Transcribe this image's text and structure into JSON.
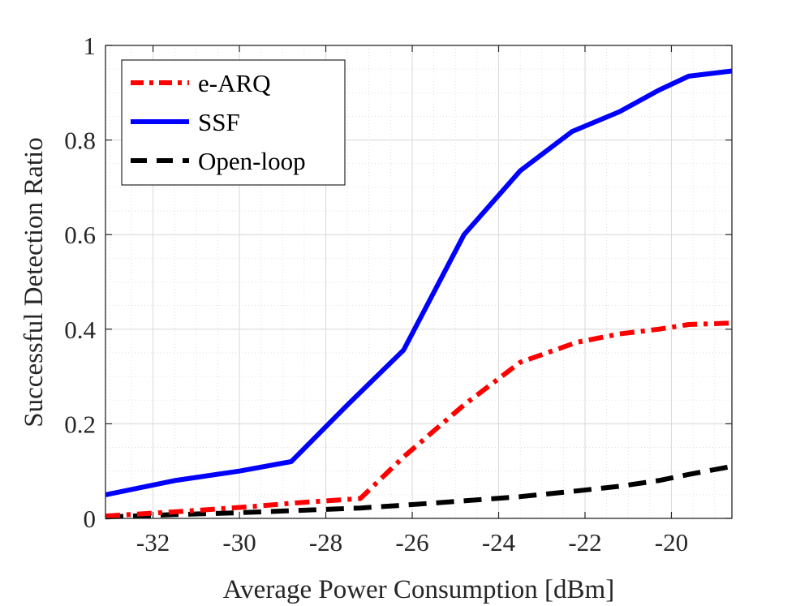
{
  "chart_data": {
    "type": "line",
    "title": "",
    "xlabel": "Average Power Consumption [dBm]",
    "ylabel": "Successful Detection Ratio",
    "xlim": [
      -33.1,
      -18.6
    ],
    "ylim": [
      0,
      1
    ],
    "xticks": [
      -32,
      -30,
      -28,
      -26,
      -24,
      -22,
      -20
    ],
    "yticks": [
      0,
      0.2,
      0.4,
      0.6,
      0.8,
      1
    ],
    "xtick_labels": [
      "-32",
      "-30",
      "-28",
      "-26",
      "-24",
      "-22",
      "-20"
    ],
    "ytick_labels": [
      "0",
      "0.2",
      "0.4",
      "0.6",
      "0.8",
      "1"
    ],
    "minor_grid": true,
    "legend_position": "top-left",
    "series": [
      {
        "name": "e-ARQ",
        "color": "#ff0000",
        "style": "dash-dot",
        "x": [
          -33.1,
          -31.3,
          -29.7,
          -28.8,
          -27.2,
          -26.2,
          -24.8,
          -23.5,
          -22.2,
          -21.2,
          -20.3,
          -19.6,
          -18.6
        ],
        "y": [
          0.005,
          0.015,
          0.025,
          0.032,
          0.042,
          0.13,
          0.24,
          0.33,
          0.372,
          0.39,
          0.4,
          0.41,
          0.413
        ]
      },
      {
        "name": "SSF",
        "color": "#0000ff",
        "style": "solid",
        "x": [
          -33.1,
          -31.5,
          -30.0,
          -28.8,
          -27.5,
          -26.2,
          -24.8,
          -23.5,
          -22.3,
          -21.2,
          -20.3,
          -19.6,
          -18.6
        ],
        "y": [
          0.05,
          0.08,
          0.1,
          0.12,
          0.24,
          0.356,
          0.6,
          0.735,
          0.818,
          0.86,
          0.905,
          0.935,
          0.946
        ]
      },
      {
        "name": "Open-loop",
        "color": "#000000",
        "style": "dashed",
        "x": [
          -33.1,
          -31.5,
          -30.0,
          -28.6,
          -27.2,
          -26.2,
          -24.8,
          -23.5,
          -22.2,
          -21.2,
          -20.3,
          -19.6,
          -18.6
        ],
        "y": [
          0.003,
          0.008,
          0.012,
          0.017,
          0.022,
          0.028,
          0.037,
          0.046,
          0.058,
          0.068,
          0.08,
          0.093,
          0.11
        ]
      }
    ]
  }
}
